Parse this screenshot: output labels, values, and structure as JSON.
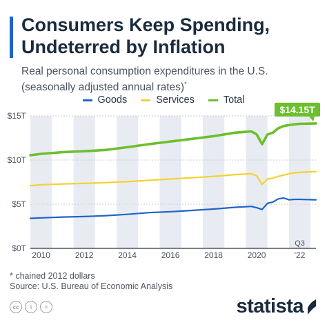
{
  "header": {
    "title": "Consumers Keep Spending, Undeterred by Inflation",
    "subtitle": "Real personal consumption expenditures in the U.S. (seasonally adjusted annual rates)",
    "subtitle_mark": "*"
  },
  "colors": {
    "accent": "#1f64c8",
    "goods": "#1f64c8",
    "services": "#f4d22f",
    "total": "#6cbf2d",
    "band": "#e8ecf2"
  },
  "legend": [
    {
      "label": "Goods",
      "color": "#1f64c8"
    },
    {
      "label": "Services",
      "color": "#f4d22f"
    },
    {
      "label": "Total",
      "color": "#6cbf2d"
    }
  ],
  "chart_data": {
    "type": "line",
    "title": "Consumers Keep Spending, Undeterred by Inflation",
    "xlabel": "",
    "ylabel": "",
    "ylim": [
      0,
      15
    ],
    "y_unit": "trillion USD (chained 2012 dollars)",
    "yticks": [
      "$0T",
      "$5T",
      "$10T",
      "$15T"
    ],
    "ytick_values": [
      0,
      5,
      10,
      15
    ],
    "xticks": [
      "2010",
      "2012",
      "2014",
      "2016",
      "2018",
      "2020",
      "'22"
    ],
    "xtick_values": [
      2010,
      2012,
      2014,
      2016,
      2018,
      2020,
      2022
    ],
    "xlim": [
      2009.5,
      2022.75
    ],
    "last_point_note": "Q3",
    "callout": "$14.15T",
    "grid": "horizontal",
    "x": [
      2009.5,
      2010,
      2011,
      2012,
      2013,
      2014,
      2015,
      2016,
      2017,
      2018,
      2019,
      2019.75,
      2020,
      2020.25,
      2020.5,
      2020.75,
      2021,
      2021.25,
      2021.5,
      2021.75,
      2022,
      2022.75
    ],
    "series": [
      {
        "name": "Goods",
        "values": [
          3.4,
          3.45,
          3.55,
          3.6,
          3.7,
          3.85,
          4.05,
          4.15,
          4.3,
          4.45,
          4.65,
          4.75,
          4.6,
          4.4,
          5.1,
          5.25,
          5.6,
          5.7,
          5.5,
          5.55,
          5.55,
          5.5
        ]
      },
      {
        "name": "Services",
        "values": [
          7.1,
          7.2,
          7.3,
          7.35,
          7.45,
          7.55,
          7.7,
          7.85,
          8.0,
          8.15,
          8.35,
          8.45,
          8.2,
          7.25,
          7.85,
          7.95,
          8.15,
          8.3,
          8.45,
          8.55,
          8.6,
          8.7
        ]
      },
      {
        "name": "Total",
        "values": [
          10.55,
          10.7,
          10.9,
          11.0,
          11.15,
          11.45,
          11.8,
          12.1,
          12.4,
          12.7,
          13.1,
          13.25,
          12.9,
          11.8,
          12.9,
          13.1,
          13.6,
          13.85,
          13.95,
          14.05,
          14.1,
          14.15
        ]
      }
    ]
  },
  "footer": {
    "footnote": "* chained 2012 dollars",
    "source": "Source: U.S. Bureau of Economic Analysis",
    "brand": "statista",
    "cc_icons": [
      "cc",
      "i",
      "="
    ]
  }
}
